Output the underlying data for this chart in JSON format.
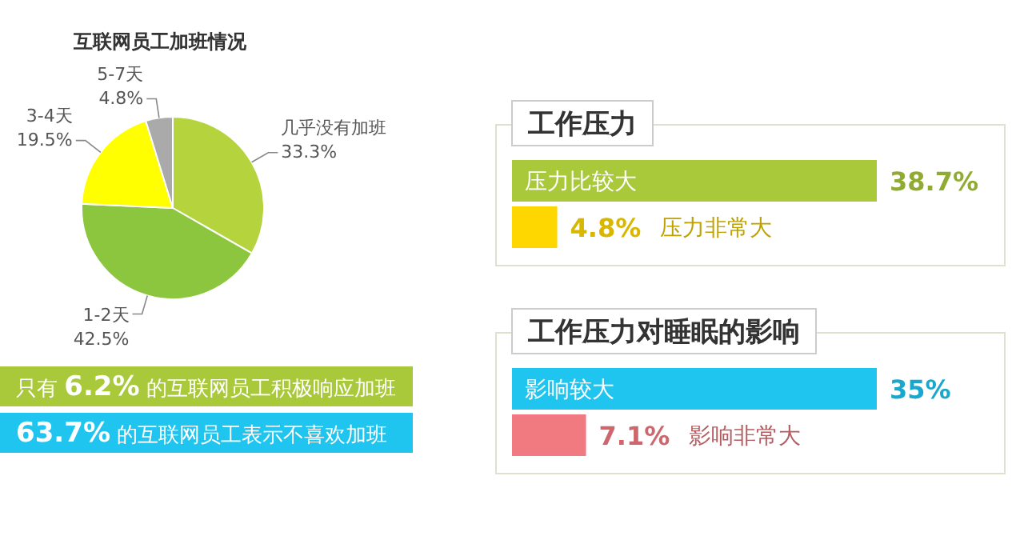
{
  "chart_data": [
    {
      "type": "pie",
      "title": "互联网员工加班情况",
      "categories": [
        "几乎没有加班",
        "1-2天",
        "3-4天",
        "5-7天"
      ],
      "values": [
        33.3,
        42.5,
        19.5,
        4.8
      ],
      "value_labels": [
        "33.3%",
        "42.5%",
        "19.5%",
        "4.8%"
      ],
      "colors": [
        "#b5d33d",
        "#8cc63f",
        "#ffff00",
        "#aaaaaa"
      ],
      "annotations": [
        "只有 **6.2%** 的互联网员工积极响应加班",
        "**63.7%** 的互联网员工表示不喜欢加班"
      ]
    },
    {
      "type": "bar",
      "orientation": "horizontal",
      "title": "工作压力",
      "categories": [
        "压力比较大",
        "压力非常大"
      ],
      "values": [
        38.7,
        4.8
      ],
      "value_labels": [
        "38.7%",
        "4.8%"
      ],
      "colors": [
        "#a9c93b",
        "#ffd700"
      ]
    },
    {
      "type": "bar",
      "orientation": "horizontal",
      "title": "工作压力对睡眠的影响",
      "categories": [
        "影响较大",
        "影响非常大"
      ],
      "values": [
        35,
        7.1
      ],
      "value_labels": [
        "35%",
        "7.1%"
      ],
      "colors": [
        "#1fc5ef",
        "#f07a80"
      ]
    }
  ]
}
